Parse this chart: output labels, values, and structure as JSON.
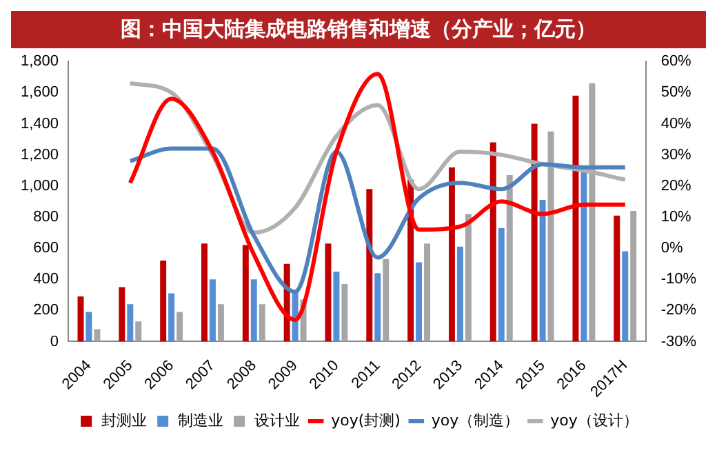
{
  "chart_data": {
    "type": "bar",
    "title": "图：中国大陆集成电路销售和增速（分产业；亿元）",
    "categories": [
      "2004",
      "2005",
      "2006",
      "2007",
      "2008",
      "2009",
      "2010",
      "2011",
      "2012",
      "2013",
      "2014",
      "2015",
      "2016",
      "2017H"
    ],
    "series": [
      {
        "name": "封测业",
        "color": "#c00000",
        "values": [
          290,
          350,
          520,
          630,
          620,
          500,
          630,
          980,
          1040,
          1120,
          1280,
          1400,
          1580,
          810
        ]
      },
      {
        "name": "制造业",
        "color": "#558ed5",
        "values": [
          190,
          240,
          310,
          400,
          400,
          330,
          450,
          440,
          510,
          610,
          730,
          910,
          1090,
          580
        ]
      },
      {
        "name": "设计业",
        "color": "#a6a6a6",
        "values": [
          80,
          130,
          190,
          240,
          240,
          270,
          370,
          530,
          630,
          820,
          1070,
          1350,
          1660,
          840
        ]
      },
      {
        "name": "yoy(封测)",
        "type": "line",
        "axis": "y2",
        "color": "#ff0000",
        "values": [
          null,
          21,
          48,
          31,
          -2,
          -23,
          31,
          56,
          6,
          7,
          15,
          11,
          14,
          14
        ]
      },
      {
        "name": "yoy（制造）",
        "type": "line",
        "axis": "y2",
        "color": "#4f81bd",
        "values": [
          null,
          28,
          32,
          32,
          4,
          -14,
          31,
          -3,
          16,
          21,
          19,
          27,
          26,
          26
        ]
      },
      {
        "name": "yoy（设计）",
        "type": "line",
        "axis": "y2",
        "color": "#b0b0b0",
        "values": [
          null,
          53,
          50,
          30,
          5,
          13,
          36,
          46,
          19,
          31,
          30,
          27,
          25,
          22
        ]
      }
    ],
    "ylim": [
      0,
      1800
    ],
    "yticks": [
      0,
      200,
      400,
      600,
      800,
      {
        "value": 1000,
        "label": "1,000"
      },
      {
        "value": 1200,
        "label": "1,200"
      },
      {
        "value": 1400,
        "label": "1,400"
      },
      {
        "value": 1600,
        "label": "1,600"
      },
      {
        "value": 1800,
        "label": "1,800"
      }
    ],
    "y2lim": [
      -30,
      60
    ],
    "y2ticks": [
      {
        "value": -30,
        "label": "-30%"
      },
      {
        "value": -20,
        "label": "-20%"
      },
      {
        "value": -10,
        "label": "-10%"
      },
      {
        "value": 0,
        "label": "0%"
      },
      {
        "value": 10,
        "label": "10%"
      },
      {
        "value": 20,
        "label": "20%"
      },
      {
        "value": 30,
        "label": "30%"
      },
      {
        "value": 40,
        "label": "40%"
      },
      {
        "value": 50,
        "label": "50%"
      },
      {
        "value": 60,
        "label": "60%"
      }
    ],
    "grid": false,
    "legend": "bottom"
  }
}
